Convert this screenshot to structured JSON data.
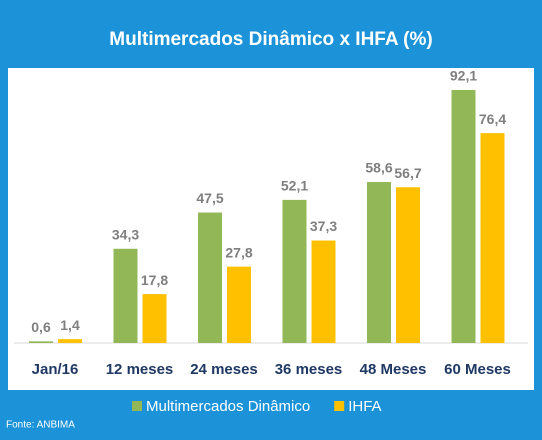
{
  "chart_data": {
    "type": "bar",
    "title": "Multimercados Dinâmico  x  IHFA  (%)",
    "categories": [
      "Jan/16",
      "12 meses",
      "24 meses",
      "36 meses",
      "48 Meses",
      "60 Meses"
    ],
    "series": [
      {
        "name": "Multimercados Dinâmico",
        "color": "#92b757",
        "values": [
          0.6,
          34.3,
          47.5,
          52.1,
          58.6,
          92.1
        ],
        "value_labels": [
          "0,6",
          "34,3",
          "47,5",
          "52,1",
          "58,6",
          "92,1"
        ]
      },
      {
        "name": "IHFA",
        "color": "#ffc000",
        "values": [
          1.4,
          17.8,
          27.8,
          37.3,
          56.7,
          76.4
        ],
        "value_labels": [
          "1,4",
          "17,8",
          "27,8",
          "37,3",
          "56,7",
          "76,4"
        ]
      }
    ],
    "legend": "bottom",
    "source": "Fonte: ANBIMA"
  }
}
